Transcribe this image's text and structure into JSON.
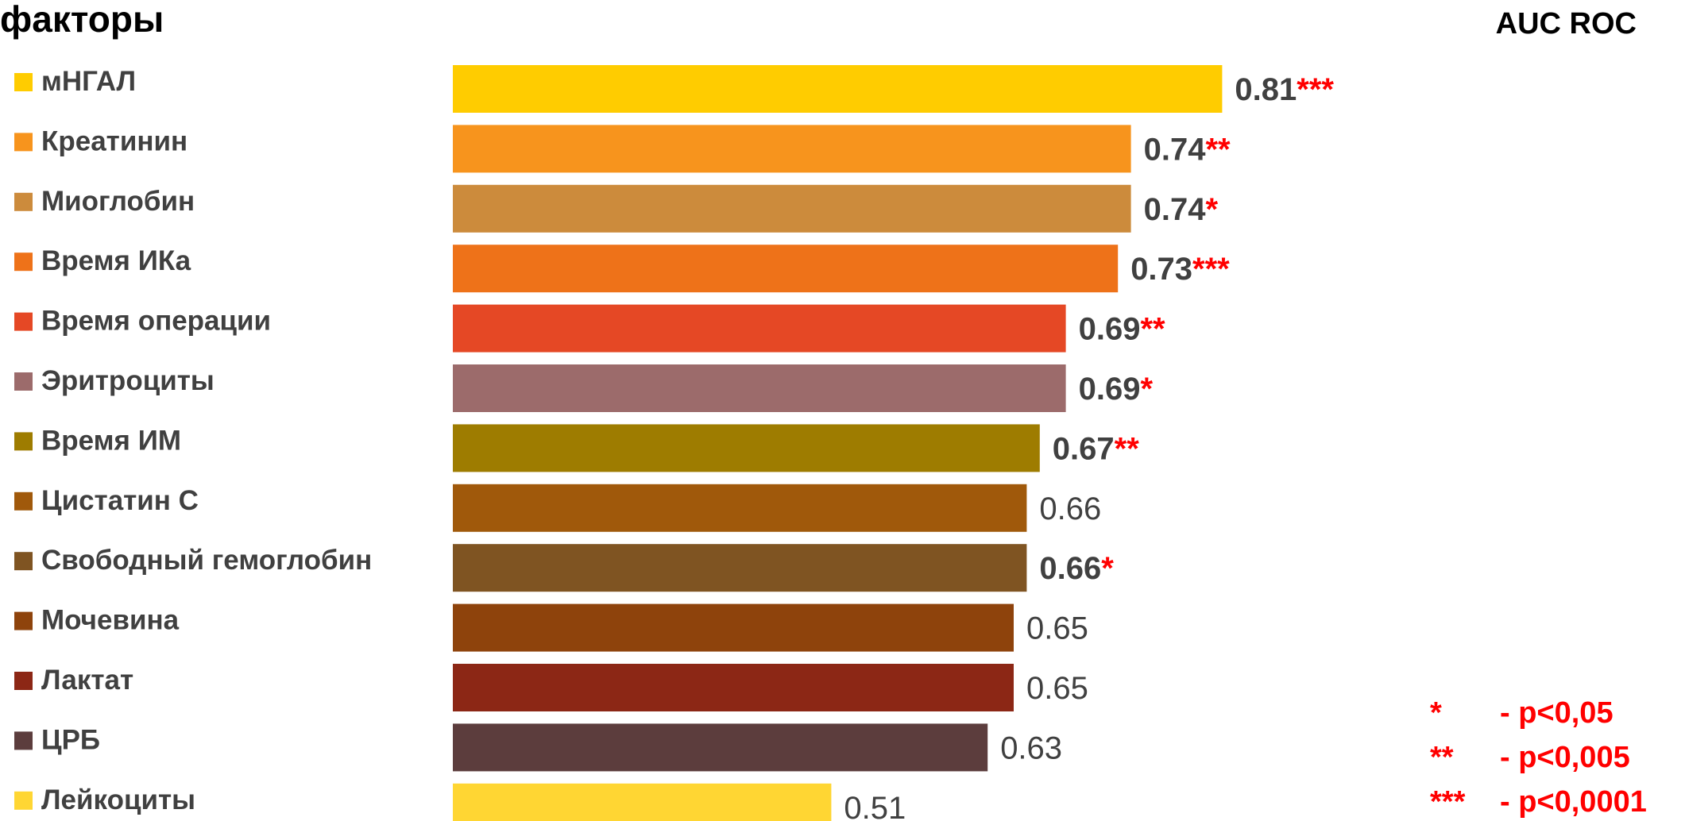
{
  "chart_data": {
    "type": "bar",
    "orientation": "horizontal",
    "category_header": "факторы",
    "value_header": "AUC ROC",
    "categories": [
      "мНГАЛ",
      "Креатинин",
      "Миоглобин",
      "Время ИКа",
      "Время операции",
      "Эритроциты",
      "Время ИМ",
      "Цистатин С",
      "Свободный гемоглобин",
      "Мочевина",
      "Лактат",
      "ЦРБ",
      "Лейкоциты"
    ],
    "values": [
      0.81,
      0.74,
      0.74,
      0.73,
      0.69,
      0.69,
      0.67,
      0.66,
      0.66,
      0.65,
      0.65,
      0.63,
      0.51
    ],
    "value_labels": [
      "0.81",
      "0.74",
      "0.74",
      "0.73",
      "0.69",
      "0.69",
      "0.67",
      "0.66",
      "0.66",
      "0.65",
      "0.65",
      "0.63",
      "0.51"
    ],
    "significance": [
      "***",
      "**",
      "*",
      "***",
      "**",
      "*",
      "**",
      "",
      "*",
      "",
      "",
      "",
      ""
    ],
    "colors": [
      "#FFCC00",
      "#F7941D",
      "#CC8B3C",
      "#EE7219",
      "#E54825",
      "#9C6B6B",
      "#9E7C00",
      "#A0590B",
      "#7F5422",
      "#8E430C",
      "#8C2715",
      "#5C3D3D",
      "#FFD633"
    ],
    "legend": [
      {
        "symbol": "*",
        "text": "- p<0,05"
      },
      {
        "symbol": "**",
        "text": "- p<0,005"
      },
      {
        "symbol": "***",
        "text": "- p<0,0001"
      }
    ],
    "accent_color": "#FF0000"
  }
}
